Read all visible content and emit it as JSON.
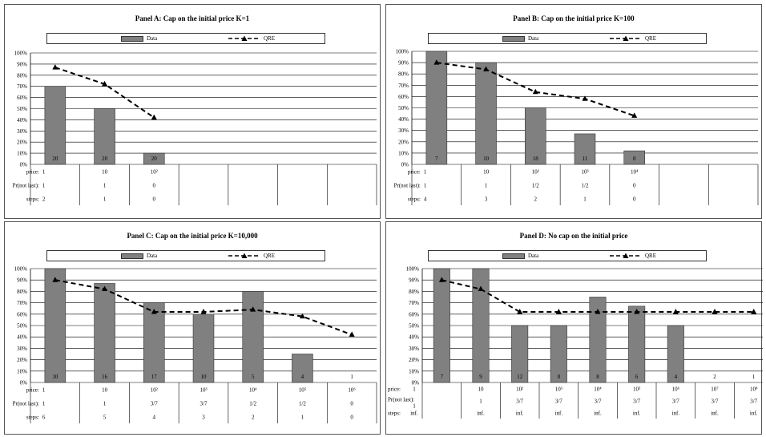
{
  "legend": {
    "data_label": "Data",
    "qre_label": "QRE"
  },
  "row_labels": {
    "price": "price:",
    "prnotlast": "Pr(not last):",
    "steps": "steps:"
  },
  "colors": {
    "bar": "#808080",
    "grid": "#000000",
    "line": "#000000"
  },
  "y_ticks": [
    "0%",
    "10%",
    "20%",
    "30%",
    "40%",
    "50%",
    "60%",
    "70%",
    "80%",
    "90%",
    "100%"
  ],
  "panels": [
    {
      "id": "A",
      "title": "Panel A: Cap on the initial price K=1",
      "chart_data": {
        "type": "bar",
        "ylim": [
          0,
          100
        ],
        "grid": true,
        "num_columns": 7,
        "series": [
          {
            "name": "Data",
            "values": [
              70,
              50,
              10
            ]
          },
          {
            "name": "QRE",
            "values": [
              87,
              72,
              42
            ]
          }
        ],
        "bar_counts": [
          "20",
          "20",
          "20"
        ]
      },
      "rows": {
        "price": [
          "1",
          "10",
          "10²"
        ],
        "prnotlast": [
          "1",
          "1",
          "0"
        ],
        "steps": [
          "2",
          "1",
          "0"
        ]
      }
    },
    {
      "id": "B",
      "title": "Panel B: Cap on the initial price K=100",
      "chart_data": {
        "type": "bar",
        "ylim": [
          0,
          100
        ],
        "grid": true,
        "num_columns": 7,
        "series": [
          {
            "name": "Data",
            "values": [
              100,
              90,
              50,
              27,
              12
            ]
          },
          {
            "name": "QRE",
            "values": [
              90,
              84,
              64,
              58,
              43
            ]
          }
        ],
        "bar_counts": [
          "7",
          "10",
          "18",
          "11",
          "8"
        ]
      },
      "rows": {
        "price": [
          "1",
          "10",
          "10²",
          "10³",
          "10⁴"
        ],
        "prnotlast": [
          "1",
          "1",
          "1/2",
          "1/2",
          "0"
        ],
        "steps": [
          "4",
          "3",
          "2",
          "1",
          "0"
        ]
      }
    },
    {
      "id": "C",
      "title": "Panel C: Cap on the initial price K=10,000",
      "chart_data": {
        "type": "bar",
        "ylim": [
          0,
          100
        ],
        "grid": true,
        "num_columns": 7,
        "series": [
          {
            "name": "Data",
            "values": [
              100,
              87,
              70,
              60,
              80,
              25,
              0
            ]
          },
          {
            "name": "QRE",
            "values": [
              90,
              82,
              62,
              62,
              64,
              58,
              42
            ]
          }
        ],
        "bar_counts": [
          "10",
          "16",
          "17",
          "10",
          "5",
          "4",
          "1"
        ]
      },
      "rows": {
        "price": [
          "1",
          "10",
          "10²",
          "10³",
          "10⁴",
          "10⁵",
          "10⁶"
        ],
        "prnotlast": [
          "1",
          "1",
          "3/7",
          "3/7",
          "1/2",
          "1/2",
          "0"
        ],
        "steps": [
          "6",
          "5",
          "4",
          "3",
          "2",
          "1",
          "0"
        ]
      }
    },
    {
      "id": "D",
      "title": "Panel D: No cap on the initial price",
      "chart_data": {
        "type": "bar",
        "ylim": [
          0,
          100
        ],
        "grid": true,
        "num_columns": 9,
        "series": [
          {
            "name": "Data",
            "values": [
              100,
              100,
              50,
              50,
              75,
              67,
              50,
              0,
              0
            ]
          },
          {
            "name": "QRE",
            "values": [
              90,
              82,
              62,
              62,
              62,
              62,
              62,
              62,
              62
            ]
          }
        ],
        "bar_counts": [
          "7",
          "9",
          "12",
          "8",
          "8",
          "6",
          "4",
          "2",
          "1"
        ]
      },
      "rows": {
        "price": [
          "1",
          "10",
          "10²",
          "10³",
          "10⁴",
          "10⁵",
          "10⁶",
          "10⁷",
          "10⁸"
        ],
        "prnotlast": [
          "1",
          "1",
          "3/7",
          "3/7",
          "3/7",
          "3/7",
          "3/7",
          "3/7",
          "3/7"
        ],
        "steps": [
          "inf.",
          "inf.",
          "inf.",
          "inf.",
          "inf.",
          "inf.",
          "inf.",
          "inf.",
          "inf."
        ]
      }
    }
  ]
}
